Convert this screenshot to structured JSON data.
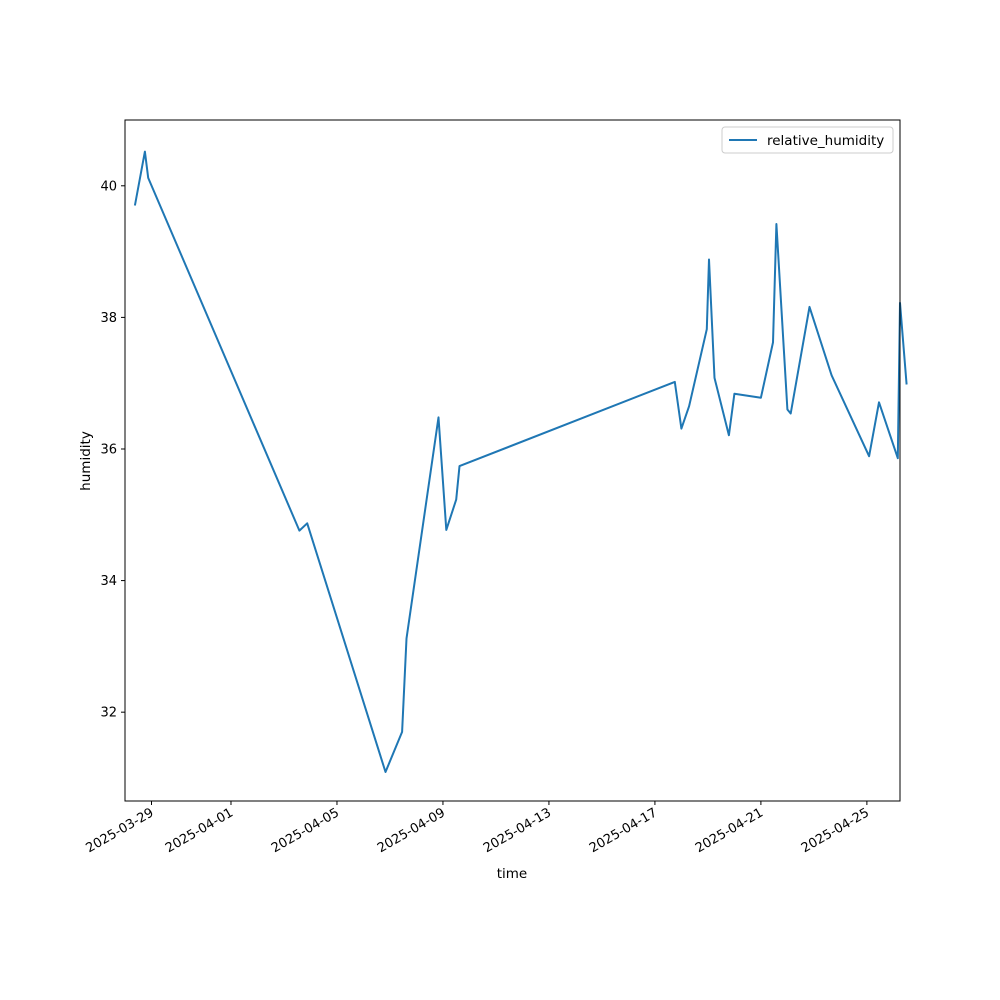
{
  "chart_data": {
    "type": "line",
    "title": "",
    "xlabel": "time",
    "ylabel": "humidity",
    "x_tick_labels": [
      "2025-03-29",
      "2025-04-01",
      "2025-04-05",
      "2025-04-09",
      "2025-04-13",
      "2025-04-17",
      "2025-04-21",
      "2025-04-25"
    ],
    "y_ticks": [
      32,
      34,
      36,
      38,
      40
    ],
    "ylim": [
      30.65,
      41.0
    ],
    "xlim": [
      "2025-03-28T00:00",
      "2025-04-26T06:00"
    ],
    "grid": false,
    "legend": {
      "position": "top-right"
    },
    "series": [
      {
        "name": "relative_humidity",
        "color": "#1f77b4",
        "points": [
          {
            "x": "2025-03-28T09:00",
            "y": 39.7
          },
          {
            "x": "2025-03-28T18:00",
            "y": 40.52
          },
          {
            "x": "2025-03-28T21:00",
            "y": 40.12
          },
          {
            "x": "2025-04-03T14:00",
            "y": 34.76
          },
          {
            "x": "2025-04-03T21:00",
            "y": 34.87
          },
          {
            "x": "2025-04-06T20:00",
            "y": 31.09
          },
          {
            "x": "2025-04-07T11:00",
            "y": 31.7
          },
          {
            "x": "2025-04-07T15:00",
            "y": 33.12
          },
          {
            "x": "2025-04-08T20:00",
            "y": 36.48
          },
          {
            "x": "2025-04-09T03:00",
            "y": 34.77
          },
          {
            "x": "2025-04-09T12:00",
            "y": 35.23
          },
          {
            "x": "2025-04-09T15:00",
            "y": 35.74
          },
          {
            "x": "2025-04-17T18:00",
            "y": 37.02
          },
          {
            "x": "2025-04-18T00:00",
            "y": 36.31
          },
          {
            "x": "2025-04-18T07:00",
            "y": 36.65
          },
          {
            "x": "2025-04-18T23:00",
            "y": 37.82
          },
          {
            "x": "2025-04-19T01:00",
            "y": 38.88
          },
          {
            "x": "2025-04-19T06:00",
            "y": 37.08
          },
          {
            "x": "2025-04-19T19:00",
            "y": 36.21
          },
          {
            "x": "2025-04-20T00:00",
            "y": 36.84
          },
          {
            "x": "2025-04-21T00:00",
            "y": 36.78
          },
          {
            "x": "2025-04-21T11:00",
            "y": 37.62
          },
          {
            "x": "2025-04-21T14:00",
            "y": 39.42
          },
          {
            "x": "2025-04-22T00:00",
            "y": 36.6
          },
          {
            "x": "2025-04-22T03:00",
            "y": 36.54
          },
          {
            "x": "2025-04-22T20:00",
            "y": 38.16
          },
          {
            "x": "2025-04-23T16:00",
            "y": 37.12
          },
          {
            "x": "2025-04-25T02:00",
            "y": 35.89
          },
          {
            "x": "2025-04-25T11:00",
            "y": 36.71
          },
          {
            "x": "2025-04-26T04:00",
            "y": 35.86
          },
          {
            "x": "2025-04-26T06:00",
            "y": 38.22
          },
          {
            "x": "2025-04-26T12:00",
            "y": 36.98
          }
        ]
      }
    ]
  }
}
